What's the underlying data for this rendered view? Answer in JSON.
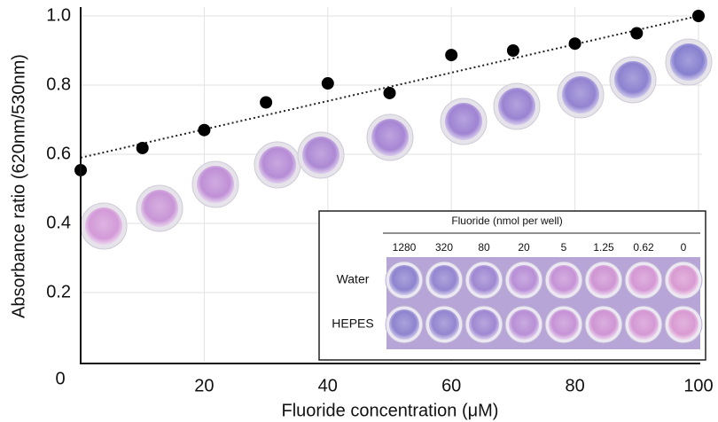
{
  "chart_data": {
    "type": "scatter",
    "x_label": "Fluoride concentration (μM)",
    "y_label": "Absorbance ratio (620nm/530nm)",
    "x": [
      0,
      10,
      20,
      30,
      40,
      50,
      60,
      70,
      80,
      90,
      100
    ],
    "series": [
      {
        "color": "#000000",
        "values": [
          0.554,
          0.618,
          0.67,
          0.75,
          0.805,
          0.777,
          0.887,
          0.9,
          0.92,
          0.95,
          1.0
        ]
      }
    ],
    "trendline": {
      "x": [
        0,
        100
      ],
      "values": [
        0.59,
        1.0
      ],
      "color": "#222222"
    },
    "xlim": [
      0,
      100
    ],
    "ylim": [
      0,
      1.0
    ],
    "xticks": [
      20,
      40,
      60,
      80,
      100
    ],
    "yticks": [
      0,
      0.2,
      0.4,
      0.6,
      0.8,
      {
        "value": 1,
        "label": "1.0"
      }
    ],
    "grid": true,
    "inset": {
      "title": "Fluoride (nmol per well)",
      "columns": [
        "1280",
        "320",
        "80",
        "20",
        "5",
        "1.25",
        "0.62",
        "0"
      ],
      "rows": [
        "Water",
        "HEPES"
      ]
    }
  }
}
